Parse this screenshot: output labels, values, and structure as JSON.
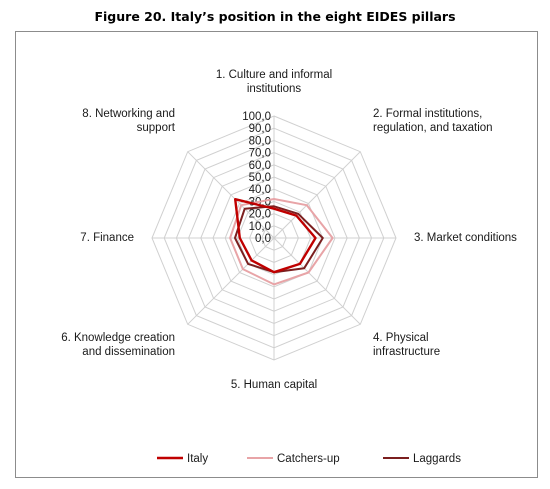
{
  "figure": {
    "title": "Figure 20. Italy’s position in the eight EIDES pillars"
  },
  "chart_data": {
    "type": "radar",
    "categories": [
      [
        "1. Culture and informal",
        "institutions"
      ],
      [
        "2. Formal institutions,",
        "regulation, and taxation"
      ],
      [
        "3. Market conditions"
      ],
      [
        "4. Physical",
        "infrastructure"
      ],
      [
        "5. Human capital"
      ],
      [
        "6. Knowledge creation",
        "and dissemination"
      ],
      [
        "7. Finance"
      ],
      [
        "8. Networking and",
        "support"
      ]
    ],
    "rlim": [
      0,
      100
    ],
    "ticks": [
      "0,0",
      "10,0",
      "20,0",
      "30,0",
      "40,0",
      "50,0",
      "60,0",
      "70,0",
      "80,0",
      "90,0",
      "100,0"
    ],
    "tick_values": [
      0,
      10,
      20,
      30,
      40,
      50,
      60,
      70,
      80,
      90,
      100
    ],
    "grid": true,
    "legend_position": "bottom",
    "series": [
      {
        "name": "Italy",
        "color": "#c00000",
        "values": [
          24,
          26,
          34,
          30,
          28,
          26,
          28,
          45
        ]
      },
      {
        "name": "Catchers-up",
        "color": "#e8a4a7",
        "values": [
          32,
          38,
          48,
          40,
          38,
          36,
          36,
          38
        ]
      },
      {
        "name": "Laggards",
        "color": "#7b1f1f",
        "values": [
          26,
          28,
          40,
          35,
          28,
          30,
          32,
          34
        ]
      }
    ]
  }
}
